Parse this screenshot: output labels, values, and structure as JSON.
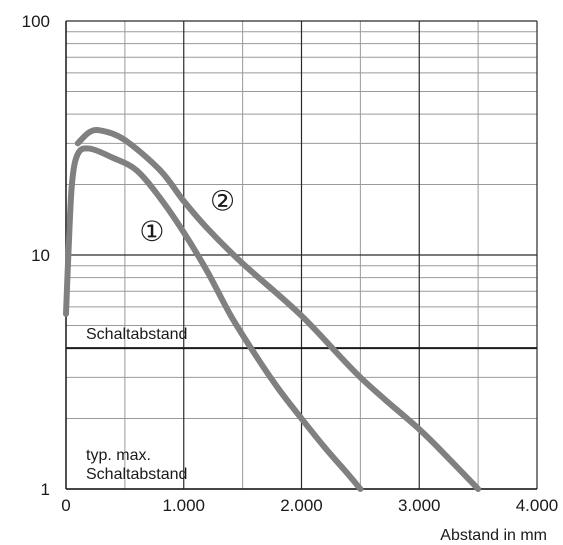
{
  "chart_data": {
    "type": "line",
    "title": "",
    "xlabel": "Abstand in mm",
    "ylabel": "",
    "xlim": [
      0,
      4000
    ],
    "ylim": [
      1,
      100
    ],
    "yscale": "log",
    "grid": true,
    "x_ticks": [
      0,
      1000,
      2000,
      3000,
      4000
    ],
    "x_tick_labels": [
      "0",
      "1.000",
      "2.000",
      "3.000",
      "4.000"
    ],
    "y_ticks": [
      1,
      10,
      100
    ],
    "y_tick_labels": [
      "1",
      "10",
      "100"
    ],
    "threshold": {
      "y": 4.0,
      "label": "Schaltabstand"
    },
    "annotation_bottom": [
      "typ. max.",
      "Schaltabstand"
    ],
    "series": [
      {
        "name": "①",
        "color": "#808080",
        "points": [
          [
            0,
            5.6
          ],
          [
            20,
            10
          ],
          [
            50,
            20
          ],
          [
            100,
            27
          ],
          [
            200,
            28.5
          ],
          [
            400,
            26
          ],
          [
            600,
            23
          ],
          [
            800,
            17.5
          ],
          [
            1000,
            12.5
          ],
          [
            1200,
            8.5
          ],
          [
            1400,
            5.5
          ],
          [
            1600,
            3.8
          ],
          [
            1800,
            2.7
          ],
          [
            2000,
            2.0
          ],
          [
            2200,
            1.5
          ],
          [
            2400,
            1.15
          ],
          [
            2500,
            1.0
          ]
        ],
        "marker": {
          "x": 730,
          "y": 11.5
        }
      },
      {
        "name": "②",
        "color": "#808080",
        "points": [
          [
            100,
            30
          ],
          [
            200,
            33.5
          ],
          [
            300,
            34
          ],
          [
            500,
            31
          ],
          [
            800,
            23
          ],
          [
            1000,
            17
          ],
          [
            1200,
            13
          ],
          [
            1500,
            9.2
          ],
          [
            2000,
            5.5
          ],
          [
            2500,
            3.0
          ],
          [
            3000,
            1.8
          ],
          [
            3250,
            1.35
          ],
          [
            3500,
            1.0
          ]
        ],
        "marker": {
          "x": 1330,
          "y": 15.5
        }
      }
    ]
  }
}
